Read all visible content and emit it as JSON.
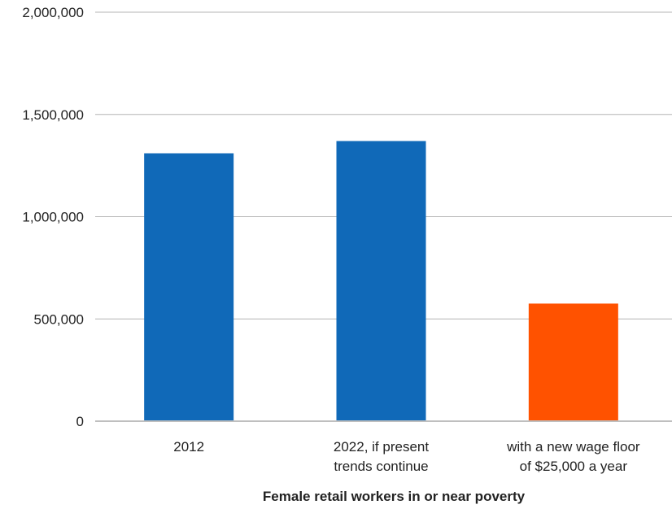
{
  "chart_data": {
    "type": "bar",
    "title": "",
    "xlabel": "Female retail workers in or near poverty",
    "ylabel": "",
    "ylim": [
      0,
      2000000
    ],
    "yticks": [
      0,
      500000,
      1000000,
      1500000,
      2000000
    ],
    "ytick_labels": [
      "0",
      "500,000",
      "1,000,000",
      "1,500,000",
      "2,000,000"
    ],
    "categories": [
      [
        "2012"
      ],
      [
        "2022, if present",
        "trends continue"
      ],
      [
        "with a new wage floor",
        "of $25,000 a year"
      ]
    ],
    "values": [
      1310000,
      1370000,
      575000
    ],
    "colors": [
      "#1069b8",
      "#1069b8",
      "#ff5200"
    ],
    "grid": true,
    "legend": "none"
  }
}
